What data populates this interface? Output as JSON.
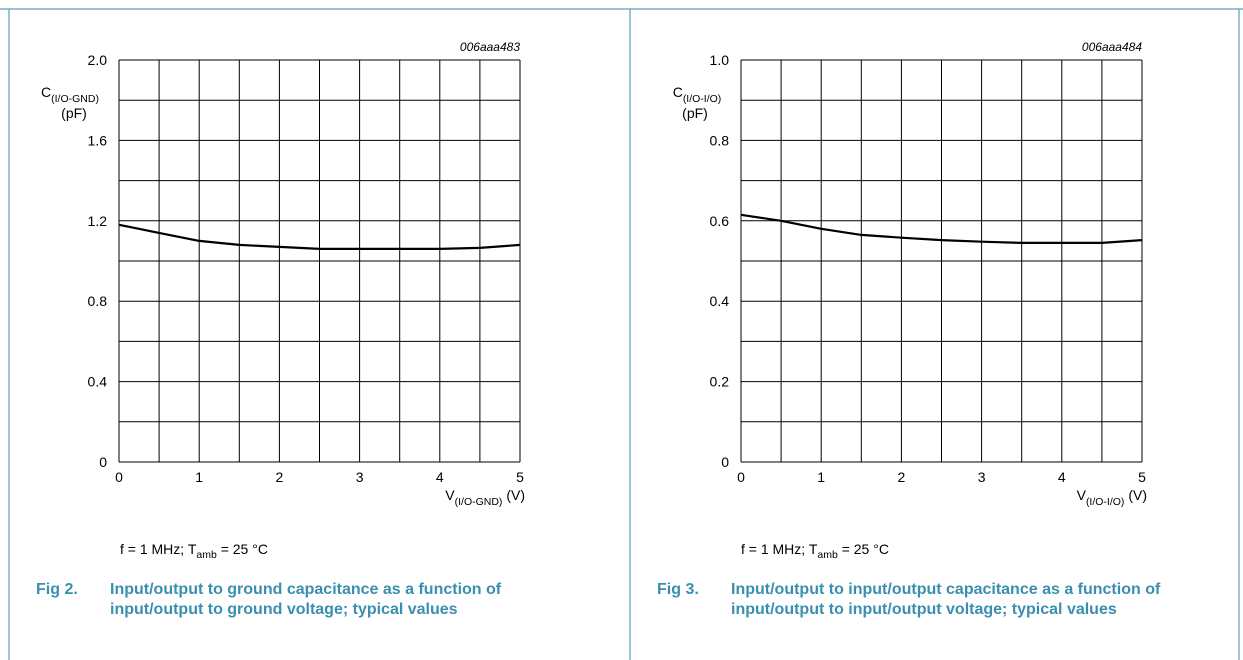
{
  "colors": {
    "caption": "#3a8fb0",
    "frame": "#5aa0b8",
    "curve": "#000000"
  },
  "figures": [
    {
      "code": "006aaa483",
      "ylabel_main": "C",
      "ylabel_sub": "(I/O-GND)",
      "ylabel_unit": "(pF)",
      "xlabel_main": "V",
      "xlabel_sub": "(I/O-GND)",
      "xlabel_unit": "(V)",
      "y_ticks": [
        "0",
        "0.4",
        "0.8",
        "1.2",
        "1.6",
        "2.0"
      ],
      "x_ticks": [
        "0",
        "1",
        "2",
        "3",
        "4",
        "5"
      ],
      "cond_prefix": "f = 1 MHz; T",
      "cond_sub": "amb",
      "cond_suffix": " = 25 °C",
      "fig_number": "Fig 2.",
      "fig_caption": "Input/output to ground capacitance as a function of input/output to ground voltage; typical values"
    },
    {
      "code": "006aaa484",
      "ylabel_main": "C",
      "ylabel_sub": "(I/O-I/O)",
      "ylabel_unit": "(pF)",
      "xlabel_main": "V",
      "xlabel_sub": "(I/O-I/O)",
      "xlabel_unit": "(V)",
      "y_ticks": [
        "0",
        "0.2",
        "0.4",
        "0.6",
        "0.8",
        "1.0"
      ],
      "x_ticks": [
        "0",
        "1",
        "2",
        "3",
        "4",
        "5"
      ],
      "cond_prefix": "f = 1 MHz; T",
      "cond_sub": "amb",
      "cond_suffix": " = 25 °C",
      "fig_number": "Fig 3.",
      "fig_caption": "Input/output to input/output capacitance as a function of input/output to input/output voltage; typical values"
    }
  ],
  "chart_data": [
    {
      "type": "line",
      "title": "",
      "xlabel": "V(I/O-GND) (V)",
      "ylabel": "C(I/O-GND) (pF)",
      "xlim": [
        0,
        5
      ],
      "ylim": [
        0,
        2.0
      ],
      "grid": true,
      "x": [
        0,
        0.5,
        1,
        1.5,
        2,
        2.5,
        3,
        3.5,
        4,
        4.5,
        5
      ],
      "series": [
        {
          "values": [
            1.18,
            1.14,
            1.1,
            1.08,
            1.07,
            1.06,
            1.06,
            1.06,
            1.06,
            1.065,
            1.08
          ]
        }
      ]
    },
    {
      "type": "line",
      "title": "",
      "xlabel": "V(I/O-I/O) (V)",
      "ylabel": "C(I/O-I/O) (pF)",
      "xlim": [
        0,
        5
      ],
      "ylim": [
        0,
        1.0
      ],
      "grid": true,
      "x": [
        0,
        0.5,
        1,
        1.5,
        2,
        2.5,
        3,
        3.5,
        4,
        4.5,
        5
      ],
      "series": [
        {
          "values": [
            0.615,
            0.6,
            0.58,
            0.565,
            0.558,
            0.552,
            0.548,
            0.545,
            0.545,
            0.545,
            0.552
          ]
        }
      ]
    }
  ]
}
